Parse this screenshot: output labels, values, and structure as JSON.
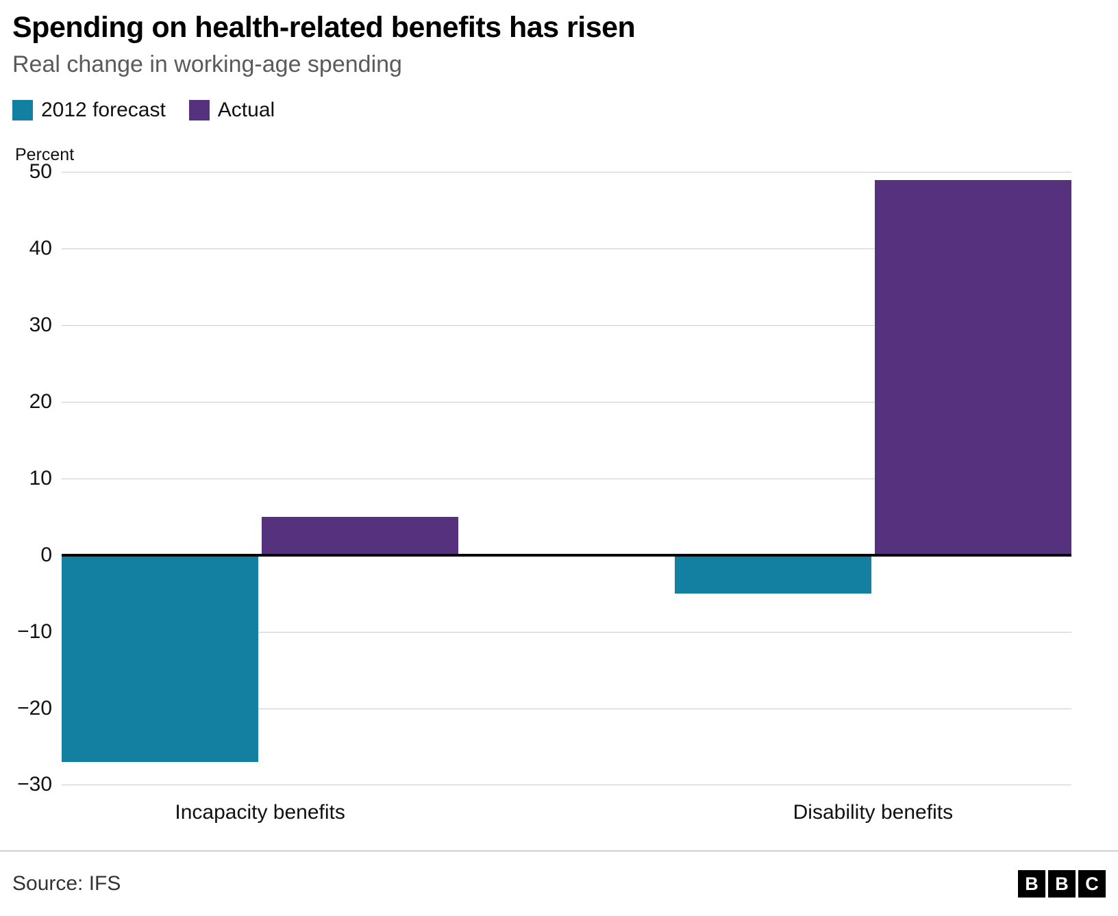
{
  "header": {
    "title": "Spending on health-related benefits has risen",
    "subtitle": "Real change in working-age spending"
  },
  "chart_data": {
    "type": "bar",
    "categories": [
      "Incapacity benefits",
      "Disability benefits"
    ],
    "series": [
      {
        "name": "2012 forecast",
        "color": "#1480A1",
        "values": [
          -27,
          -5
        ]
      },
      {
        "name": "Actual",
        "color": "#55317E",
        "values": [
          5,
          49
        ]
      }
    ],
    "title": "Spending on health-related benefits has risen",
    "subtitle": "Real change in working-age spending",
    "ylabel": "Percent",
    "xlabel": "",
    "ylim": [
      -30,
      50
    ],
    "yticks": [
      50,
      40,
      30,
      20,
      10,
      0,
      -10,
      -20,
      -30
    ],
    "grid": true,
    "legend_position": "top"
  },
  "footer": {
    "source": "Source: IFS",
    "logo_letters": [
      "B",
      "B",
      "C"
    ]
  }
}
